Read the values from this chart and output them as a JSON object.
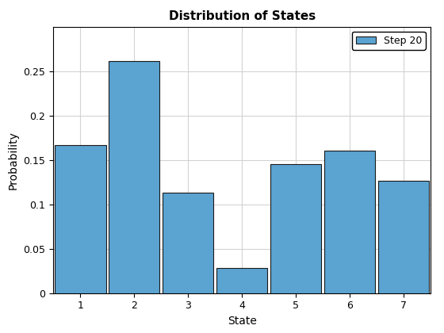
{
  "categories": [
    "1",
    "2",
    "3",
    "4",
    "5",
    "6",
    "7"
  ],
  "values": [
    0.167,
    0.261,
    0.113,
    0.028,
    0.145,
    0.16,
    0.126
  ],
  "bar_color": "#5ba3d0",
  "bar_edge_color": "#1a1a1a",
  "title": "Distribution of States",
  "xlabel": "State",
  "ylabel": "Probability",
  "ylim": [
    0,
    0.3
  ],
  "yticks": [
    0,
    0.05,
    0.1,
    0.15,
    0.2,
    0.25
  ],
  "legend_label": "Step 20",
  "title_fontsize": 11,
  "label_fontsize": 10,
  "tick_fontsize": 9,
  "grid": true,
  "background_color": "#ffffff",
  "bar_width": 0.95,
  "spine_color": "#000000"
}
